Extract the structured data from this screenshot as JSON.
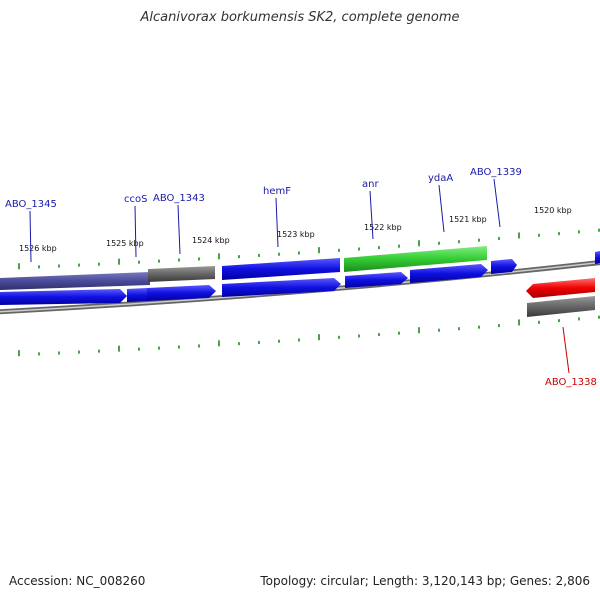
{
  "title": "Alcanivorax borkumensis SK2, complete genome",
  "footer": {
    "accession": "Accession: NC_008260",
    "stats": "Topology: circular; Length: 3,120,143 bp; Genes: 2,806"
  },
  "colors": {
    "background": "#ffffff",
    "gene_cds_blue": "#1010e0",
    "gene_highlight_green": "#33cc33",
    "gene_highlight_red": "#ee0000",
    "gene_grey": "#666666",
    "gene_slate": "#4a4a9a",
    "backbone": "#888888",
    "tick_green": "#1a8a1a",
    "label_blue": "#1a1aa6",
    "label_red": "#cc0000"
  },
  "kbp_labels": [
    "1526 kbp",
    "1525 kbp",
    "1524 kbp",
    "1523 kbp",
    "1522 kbp",
    "1521 kbp",
    "1520 kbp"
  ],
  "gene_labels": [
    {
      "text": "ABO_1345",
      "color": "blue"
    },
    {
      "text": "ccoS",
      "color": "blue"
    },
    {
      "text": "ABO_1343",
      "color": "blue"
    },
    {
      "text": "hemF",
      "color": "blue"
    },
    {
      "text": "anr",
      "color": "blue"
    },
    {
      "text": "ydaA",
      "color": "blue"
    },
    {
      "text": "ABO_1339",
      "color": "blue"
    },
    {
      "text": "ABO_1338",
      "color": "red"
    }
  ]
}
